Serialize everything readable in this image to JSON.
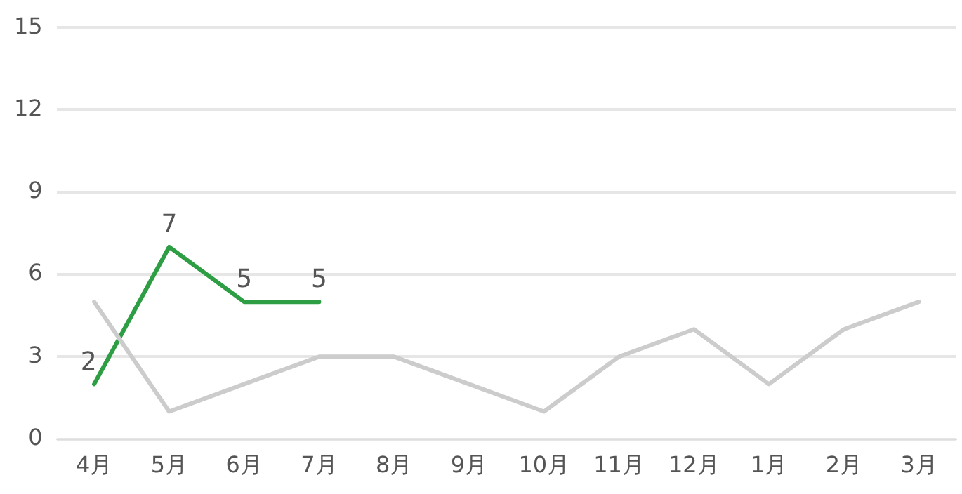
{
  "chart_data": {
    "type": "line",
    "categories": [
      "4月",
      "5月",
      "6月",
      "7月",
      "8月",
      "9月",
      "10月",
      "11月",
      "12月",
      "1月",
      "2月",
      "3月"
    ],
    "series": [
      {
        "color": "#cccccc",
        "values": [
          5,
          1,
          2,
          3,
          3,
          2,
          1,
          3,
          4,
          2,
          4,
          5
        ]
      },
      {
        "color": "#2e9e44",
        "values": [
          2,
          7,
          5,
          5,
          null,
          null,
          null,
          null,
          null,
          null,
          null,
          null
        ],
        "value_labels": [
          "2",
          "7",
          "5",
          "5",
          null,
          null,
          null,
          null,
          null,
          null,
          null,
          null
        ]
      }
    ],
    "ylim": [
      0,
      15
    ],
    "yticks": [
      0,
      3,
      6,
      9,
      12,
      15
    ],
    "grid": "y",
    "legend": false,
    "marker": "none",
    "line_style": "solid"
  }
}
